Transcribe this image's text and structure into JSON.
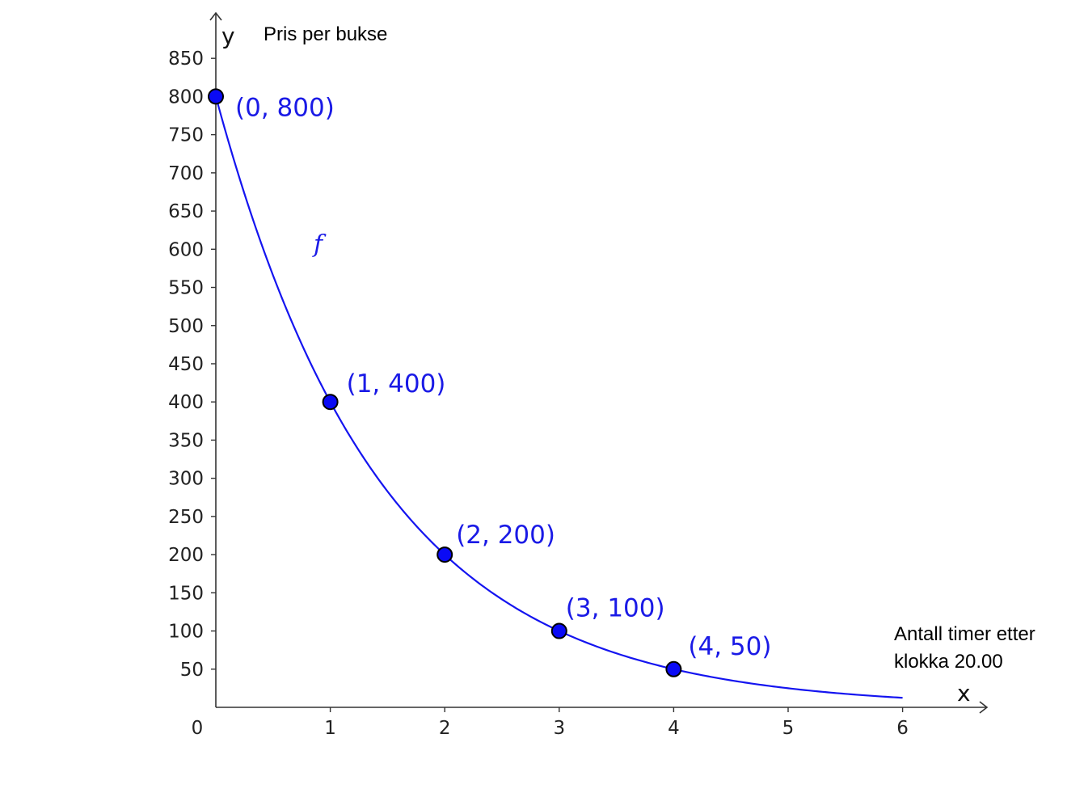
{
  "chart_data": {
    "type": "line",
    "ylabel_caption": "Pris per bukse",
    "xlabel_caption_lines": [
      "Antall timer etter",
      "klokka 20.00"
    ],
    "x_axis_name": "x",
    "y_axis_name": "y",
    "origin_label": "0",
    "xlim": [
      0,
      6.6
    ],
    "ylim": [
      0,
      900
    ],
    "x_ticks": [
      1,
      2,
      3,
      4,
      5,
      6
    ],
    "y_ticks": [
      50,
      100,
      150,
      200,
      250,
      300,
      350,
      400,
      450,
      500,
      550,
      600,
      650,
      700,
      750,
      800,
      850
    ],
    "function": {
      "name": "f",
      "formula": "800 * 0.5^x",
      "domain": [
        0,
        6
      ]
    },
    "points": [
      {
        "x": 0,
        "y": 800,
        "label": "(0, 800)"
      },
      {
        "x": 1,
        "y": 400,
        "label": "(1, 400)"
      },
      {
        "x": 2,
        "y": 200,
        "label": "(2, 200)"
      },
      {
        "x": 3,
        "y": 100,
        "label": "(3, 100)"
      },
      {
        "x": 4,
        "y": 50,
        "label": "(4, 50)"
      }
    ],
    "grid": false,
    "colors": {
      "curve": "#1414f0",
      "point_fill": "#0a0af5",
      "label": "#1a1ae6",
      "axis": "#333333"
    }
  }
}
